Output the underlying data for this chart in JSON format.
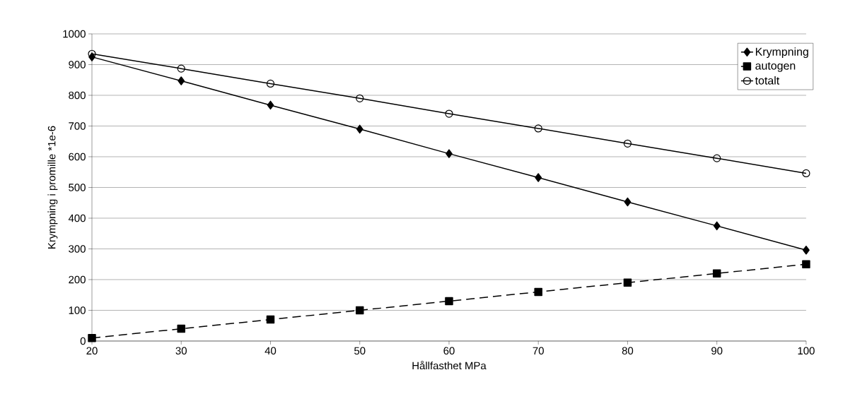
{
  "chart_data": {
    "type": "line",
    "xlabel": "Hållfasthet MPa",
    "ylabel": "Krympning i promille *1e-6",
    "x": [
      20,
      30,
      40,
      50,
      60,
      70,
      80,
      90,
      100
    ],
    "series": [
      {
        "name": "Krympning",
        "color": "#000000",
        "marker": "diamond",
        "line_style": "solid",
        "values": [
          925,
          847,
          768,
          690,
          610,
          532,
          453,
          375,
          296
        ]
      },
      {
        "name": "autogen",
        "color": "#000000",
        "marker": "square",
        "line_style": "dashed",
        "values": [
          10,
          40,
          70,
          100,
          130,
          160,
          190,
          220,
          250
        ]
      },
      {
        "name": "totalt",
        "color": "#000000",
        "marker": "circle",
        "line_style": "solid",
        "values": [
          935,
          887,
          838,
          790,
          740,
          692,
          643,
          595,
          546
        ]
      }
    ],
    "xlim": [
      20,
      100
    ],
    "xticks": [
      20,
      30,
      40,
      50,
      60,
      70,
      80,
      90,
      100
    ],
    "ylim": [
      0,
      1000
    ],
    "yticks": [
      0,
      100,
      200,
      300,
      400,
      500,
      600,
      700,
      800,
      900,
      1000
    ],
    "grid": "y",
    "legend": "top right"
  }
}
